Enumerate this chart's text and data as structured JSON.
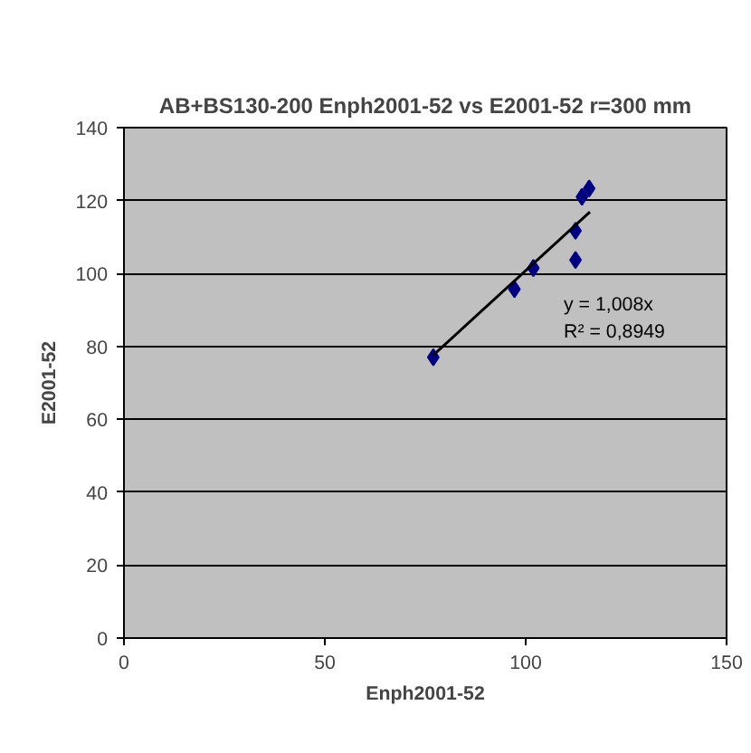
{
  "chart_data": {
    "type": "scatter",
    "title": "AB+BS130-200 Enph2001-52 vs E2001-52 r=300 mm",
    "xlabel": "Enph2001-52",
    "ylabel": "E2001-52",
    "xlim": [
      0,
      150
    ],
    "xticks": [
      0,
      50,
      100,
      150
    ],
    "ylim": [
      0,
      140
    ],
    "yticks": [
      0,
      20,
      40,
      60,
      80,
      100,
      120,
      140
    ],
    "grid": "y",
    "series": [
      {
        "color": "#000080",
        "marker": "diamond",
        "x": [
          77,
          97.2,
          101.9,
          112.4,
          112.4,
          114,
          115.8
        ],
        "values": [
          77,
          95.7,
          101.5,
          111.7,
          103.7,
          121,
          123.3
        ]
      },
      {
        "type": "line",
        "marker": "none",
        "color": "#000000",
        "x": [
          77,
          116
        ],
        "values": [
          77.6,
          116.9
        ]
      }
    ],
    "annotations": [
      "y = 1,008x",
      "R² = 0,8949"
    ]
  }
}
